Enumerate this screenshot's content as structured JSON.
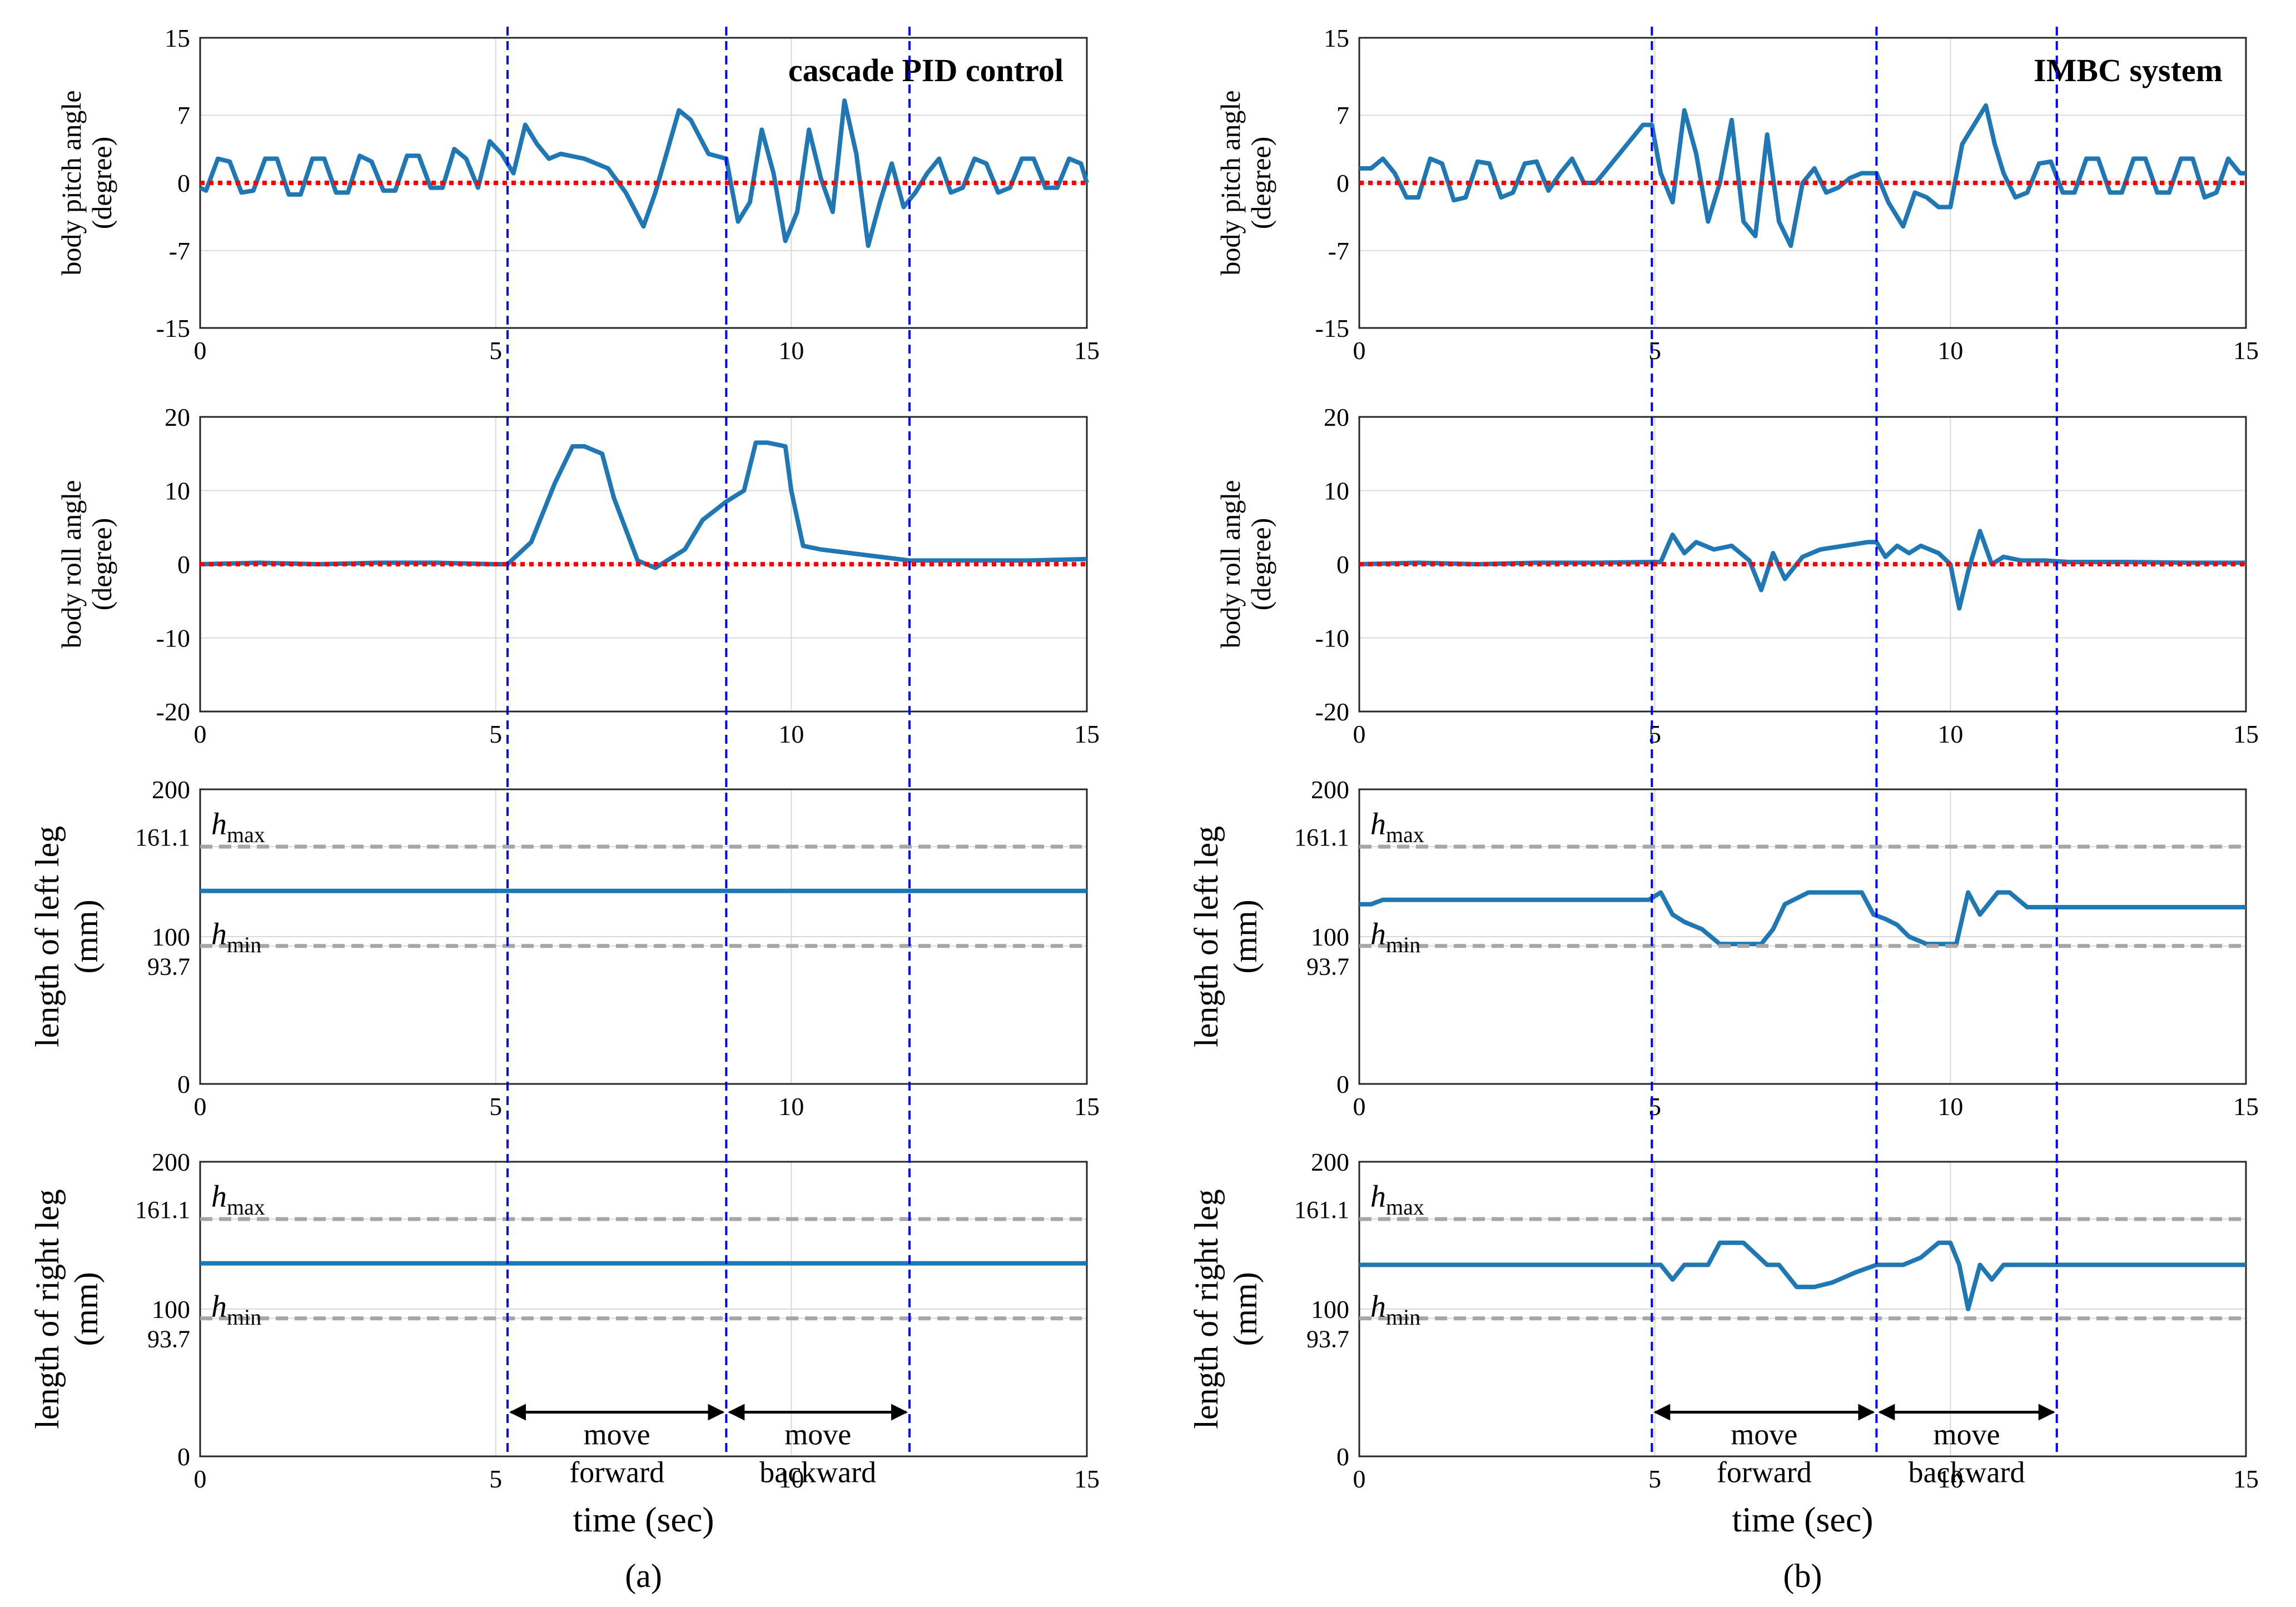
{
  "colors": {
    "signal": "#1f77b4",
    "reference": "#ff0000",
    "phase": "#0000ff",
    "limit": "#a6a6a6",
    "grid": "#d9d9d9",
    "axis": "#262626"
  },
  "figure": {
    "xlabel": "time (sec)",
    "xticks": [
      "0",
      "5",
      "10",
      "15"
    ],
    "panels": [
      {
        "id": "a",
        "caption": "(a)",
        "title": "cascade PID control",
        "phase_times": [
          5.2,
          8.9,
          12.0
        ]
      },
      {
        "id": "b",
        "caption": "(b)",
        "title": "IMBC system",
        "phase_times": [
          4.95,
          8.75,
          11.8
        ]
      }
    ],
    "rows": [
      {
        "ylabel": [
          "body pitch angle",
          "(degree)"
        ],
        "ylim": [
          -15,
          15
        ],
        "yticks": [
          "15",
          "7",
          "0",
          "-7",
          "-15"
        ]
      },
      {
        "ylabel": [
          "body roll angle",
          "(degree)"
        ],
        "ylim": [
          -20,
          20
        ],
        "yticks": [
          "20",
          "10",
          "0",
          "-10",
          "-20"
        ]
      },
      {
        "ylabel": [
          "length of left leg",
          "(mm)"
        ],
        "ylim": [
          0,
          200
        ],
        "yticks": [
          "200",
          "161.1",
          "100",
          "93.7",
          "0"
        ]
      },
      {
        "ylabel": [
          "length of right leg",
          "(mm)"
        ],
        "ylim": [
          0,
          200
        ],
        "yticks": [
          "200",
          "161.1",
          "100",
          "93.7",
          "0"
        ]
      }
    ],
    "limit_labels": {
      "max": "h",
      "max_sub": "max",
      "min": "h",
      "min_sub": "min"
    },
    "leg_limits": {
      "max": 161.1,
      "min": 93.7
    },
    "motion_labels": {
      "forward": [
        "move",
        "forward"
      ],
      "backward": [
        "move",
        "backward"
      ]
    }
  },
  "chart_data": [
    {
      "panel": "a",
      "type": "line",
      "title": "cascade PID control",
      "ylabel": "body pitch angle (degree)",
      "xlabel": "time (sec)",
      "xlim": [
        0,
        15
      ],
      "ylim": [
        -15,
        15
      ],
      "series": [
        {
          "name": "body pitch",
          "x": [
            0,
            0.1,
            0.3,
            0.5,
            0.7,
            0.9,
            1.1,
            1.3,
            1.5,
            1.7,
            1.9,
            2.1,
            2.3,
            2.5,
            2.7,
            2.9,
            3.1,
            3.3,
            3.5,
            3.7,
            3.9,
            4.1,
            4.3,
            4.5,
            4.7,
            4.9,
            5.1,
            5.3,
            5.5,
            5.7,
            5.9,
            6.1,
            6.5,
            6.9,
            7.2,
            7.5,
            7.7,
            8.1,
            8.3,
            8.6,
            8.9,
            9.1,
            9.3,
            9.5,
            9.7,
            9.9,
            10.1,
            10.3,
            10.5,
            10.7,
            10.9,
            11.1,
            11.3,
            11.5,
            11.7,
            11.9,
            12.1,
            12.3,
            12.5,
            12.7,
            12.9,
            13.1,
            13.3,
            13.5,
            13.7,
            13.9,
            14.1,
            14.3,
            14.5,
            14.7,
            14.9,
            15
          ],
          "y": [
            -0.5,
            -0.8,
            2.5,
            2.2,
            -1.0,
            -0.8,
            2.5,
            2.5,
            -1.2,
            -1.2,
            2.5,
            2.5,
            -1.0,
            -1.0,
            2.8,
            2.2,
            -0.8,
            -0.8,
            2.8,
            2.8,
            -0.5,
            -0.5,
            3.5,
            2.5,
            -0.5,
            4.3,
            3.0,
            1.0,
            6.0,
            4.0,
            2.5,
            3.0,
            2.5,
            1.5,
            -1.0,
            -4.5,
            -1.0,
            7.5,
            6.5,
            3.0,
            2.5,
            -4.0,
            -2.0,
            5.5,
            1.0,
            -6.0,
            -3.0,
            5.5,
            0.5,
            -3.0,
            8.5,
            3.0,
            -6.5,
            -2.0,
            2.0,
            -2.5,
            -1.0,
            1.0,
            2.5,
            -1.0,
            -0.5,
            2.5,
            2.0,
            -1.0,
            -0.5,
            2.5,
            2.5,
            -0.5,
            -0.5,
            2.5,
            2.0,
            0
          ]
        },
        {
          "name": "reference",
          "x": [
            0,
            15
          ],
          "y": [
            0,
            0
          ]
        }
      ]
    },
    {
      "panel": "a",
      "type": "line",
      "ylabel": "body roll angle (degree)",
      "xlabel": "time (sec)",
      "xlim": [
        0,
        15
      ],
      "ylim": [
        -20,
        20
      ],
      "series": [
        {
          "name": "body roll",
          "x": [
            0,
            1,
            2,
            3,
            4,
            5,
            5.2,
            5.6,
            6.0,
            6.3,
            6.5,
            6.8,
            7.0,
            7.4,
            7.7,
            8.2,
            8.5,
            8.9,
            9.2,
            9.4,
            9.6,
            9.9,
            10.0,
            10.2,
            10.5,
            11,
            12,
            13,
            14,
            15
          ],
          "y": [
            0,
            0.2,
            0,
            0.2,
            0.2,
            0,
            0,
            3,
            11,
            16,
            16,
            15,
            9,
            0.5,
            -0.5,
            2,
            6,
            8.5,
            10,
            16.5,
            16.5,
            16,
            10,
            2.5,
            2,
            1.5,
            0.5,
            0.5,
            0.5,
            0.7
          ]
        },
        {
          "name": "reference",
          "x": [
            0,
            15
          ],
          "y": [
            0,
            0
          ]
        }
      ]
    },
    {
      "panel": "a",
      "type": "line",
      "ylabel": "length of left leg (mm)",
      "xlabel": "time (sec)",
      "xlim": [
        0,
        15
      ],
      "ylim": [
        0,
        200
      ],
      "series": [
        {
          "name": "left leg",
          "x": [
            0,
            15
          ],
          "y": [
            131,
            131
          ]
        },
        {
          "name": "h_max",
          "x": [
            0,
            15
          ],
          "y": [
            161.1,
            161.1
          ]
        },
        {
          "name": "h_min",
          "x": [
            0,
            15
          ],
          "y": [
            93.7,
            93.7
          ]
        }
      ]
    },
    {
      "panel": "a",
      "type": "line",
      "ylabel": "length of right leg (mm)",
      "xlabel": "time (sec)",
      "xlim": [
        0,
        15
      ],
      "ylim": [
        0,
        200
      ],
      "series": [
        {
          "name": "right leg",
          "x": [
            0,
            15
          ],
          "y": [
            131,
            131
          ]
        },
        {
          "name": "h_max",
          "x": [
            0,
            15
          ],
          "y": [
            161.1,
            161.1
          ]
        },
        {
          "name": "h_min",
          "x": [
            0,
            15
          ],
          "y": [
            93.7,
            93.7
          ]
        }
      ]
    },
    {
      "panel": "b",
      "type": "line",
      "title": "IMBC system",
      "ylabel": "body pitch angle (degree)",
      "xlabel": "time (sec)",
      "xlim": [
        0,
        15
      ],
      "ylim": [
        -15,
        15
      ],
      "series": [
        {
          "name": "body pitch",
          "x": [
            0,
            0.2,
            0.4,
            0.6,
            0.8,
            1.0,
            1.2,
            1.4,
            1.6,
            1.8,
            2.0,
            2.2,
            2.4,
            2.6,
            2.8,
            3.0,
            3.2,
            3.4,
            3.6,
            3.8,
            4.0,
            4.2,
            4.4,
            4.6,
            4.8,
            4.95,
            5.1,
            5.3,
            5.5,
            5.7,
            5.9,
            6.1,
            6.3,
            6.5,
            6.7,
            6.9,
            7.1,
            7.3,
            7.5,
            7.7,
            7.9,
            8.1,
            8.3,
            8.5,
            8.75,
            8.95,
            9.2,
            9.4,
            9.6,
            9.8,
            10.0,
            10.2,
            10.4,
            10.6,
            10.75,
            10.9,
            11.1,
            11.3,
            11.5,
            11.7,
            11.9,
            12.1,
            12.3,
            12.5,
            12.7,
            12.9,
            13.1,
            13.3,
            13.5,
            13.7,
            13.9,
            14.1,
            14.3,
            14.5,
            14.7,
            14.9,
            15
          ],
          "y": [
            1.5,
            1.5,
            2.5,
            1.0,
            -1.5,
            -1.5,
            2.5,
            2.0,
            -1.8,
            -1.5,
            2.2,
            2.0,
            -1.5,
            -1.0,
            2.0,
            2.2,
            -0.8,
            1.0,
            2.5,
            0,
            0,
            1.5,
            3.0,
            4.5,
            6.0,
            6.0,
            1.0,
            -2.0,
            7.5,
            3.0,
            -4.0,
            0,
            6.5,
            -4.0,
            -5.5,
            5.0,
            -4.0,
            -6.5,
            0,
            1.5,
            -1.0,
            -0.5,
            0.5,
            1.0,
            1.0,
            -2.0,
            -4.5,
            -1.0,
            -1.5,
            -2.5,
            -2.5,
            4.0,
            6.0,
            8.0,
            4.0,
            1.0,
            -1.5,
            -1.0,
            2.0,
            2.2,
            -1.0,
            -1.0,
            2.5,
            2.5,
            -1.0,
            -1.0,
            2.5,
            2.5,
            -1.0,
            -1.0,
            2.5,
            2.5,
            -1.5,
            -1.0,
            2.5,
            1.0,
            1.0
          ]
        },
        {
          "name": "reference",
          "x": [
            0,
            15
          ],
          "y": [
            0,
            0
          ]
        }
      ]
    },
    {
      "panel": "b",
      "type": "line",
      "ylabel": "body roll angle (degree)",
      "xlabel": "time (sec)",
      "xlim": [
        0,
        15
      ],
      "ylim": [
        -20,
        20
      ],
      "series": [
        {
          "name": "body roll",
          "x": [
            0,
            1,
            2,
            3,
            4,
            4.95,
            5.1,
            5.3,
            5.5,
            5.7,
            6.0,
            6.3,
            6.6,
            6.8,
            7.0,
            7.2,
            7.5,
            7.8,
            8.2,
            8.6,
            8.75,
            8.9,
            9.1,
            9.3,
            9.5,
            9.8,
            10.0,
            10.15,
            10.3,
            10.5,
            10.7,
            10.9,
            11.2,
            11.6,
            12,
            13,
            14,
            15
          ],
          "y": [
            0,
            0.2,
            0,
            0.2,
            0.2,
            0.3,
            0.3,
            4,
            1.5,
            3,
            2,
            2.5,
            0.5,
            -3.5,
            1.5,
            -2,
            1,
            2,
            2.5,
            3,
            3,
            1,
            2.5,
            1.5,
            2.5,
            1.5,
            0,
            -6,
            -1,
            4.5,
            0,
            1,
            0.5,
            0.5,
            0.3,
            0.3,
            0.2,
            0.2
          ]
        },
        {
          "name": "reference",
          "x": [
            0,
            15
          ],
          "y": [
            0,
            0
          ]
        }
      ]
    },
    {
      "panel": "b",
      "type": "line",
      "ylabel": "length of left leg (mm)",
      "xlabel": "time (sec)",
      "xlim": [
        0,
        15
      ],
      "ylim": [
        0,
        200
      ],
      "series": [
        {
          "name": "left leg",
          "x": [
            0,
            0.2,
            0.4,
            4.9,
            5.1,
            5.3,
            5.5,
            5.8,
            6.1,
            6.5,
            6.8,
            7.0,
            7.2,
            7.6,
            8.0,
            8.5,
            8.7,
            8.9,
            9.1,
            9.3,
            9.6,
            9.9,
            10.1,
            10.3,
            10.5,
            10.8,
            11,
            11.3,
            15
          ],
          "y": [
            122,
            122,
            125,
            125,
            130,
            115,
            110,
            105,
            95,
            95,
            95,
            105,
            122,
            130,
            130,
            130,
            115,
            112,
            108,
            100,
            95,
            95,
            95,
            130,
            115,
            130,
            130,
            120,
            120
          ]
        },
        {
          "name": "h_max",
          "x": [
            0,
            15
          ],
          "y": [
            161.1,
            161.1
          ]
        },
        {
          "name": "h_min",
          "x": [
            0,
            15
          ],
          "y": [
            93.7,
            93.7
          ]
        }
      ]
    },
    {
      "panel": "b",
      "type": "line",
      "ylabel": "length of right leg (mm)",
      "xlabel": "time (sec)",
      "xlim": [
        0,
        15
      ],
      "ylim": [
        0,
        200
      ],
      "series": [
        {
          "name": "right leg",
          "x": [
            0,
            4.95,
            5.1,
            5.3,
            5.5,
            5.9,
            6.1,
            6.5,
            6.9,
            7.1,
            7.4,
            7.7,
            8.0,
            8.4,
            8.75,
            8.9,
            9.2,
            9.5,
            9.8,
            10.0,
            10.15,
            10.3,
            10.5,
            10.7,
            10.9,
            15
          ],
          "y": [
            130,
            130,
            130,
            120,
            130,
            130,
            145,
            145,
            130,
            130,
            115,
            115,
            118,
            125,
            130,
            130,
            130,
            135,
            145,
            145,
            130,
            100,
            130,
            120,
            130,
            130
          ]
        },
        {
          "name": "h_max",
          "x": [
            0,
            15
          ],
          "y": [
            161.1,
            161.1
          ]
        },
        {
          "name": "h_min",
          "x": [
            0,
            15
          ],
          "y": [
            93.7,
            93.7
          ]
        }
      ]
    }
  ]
}
